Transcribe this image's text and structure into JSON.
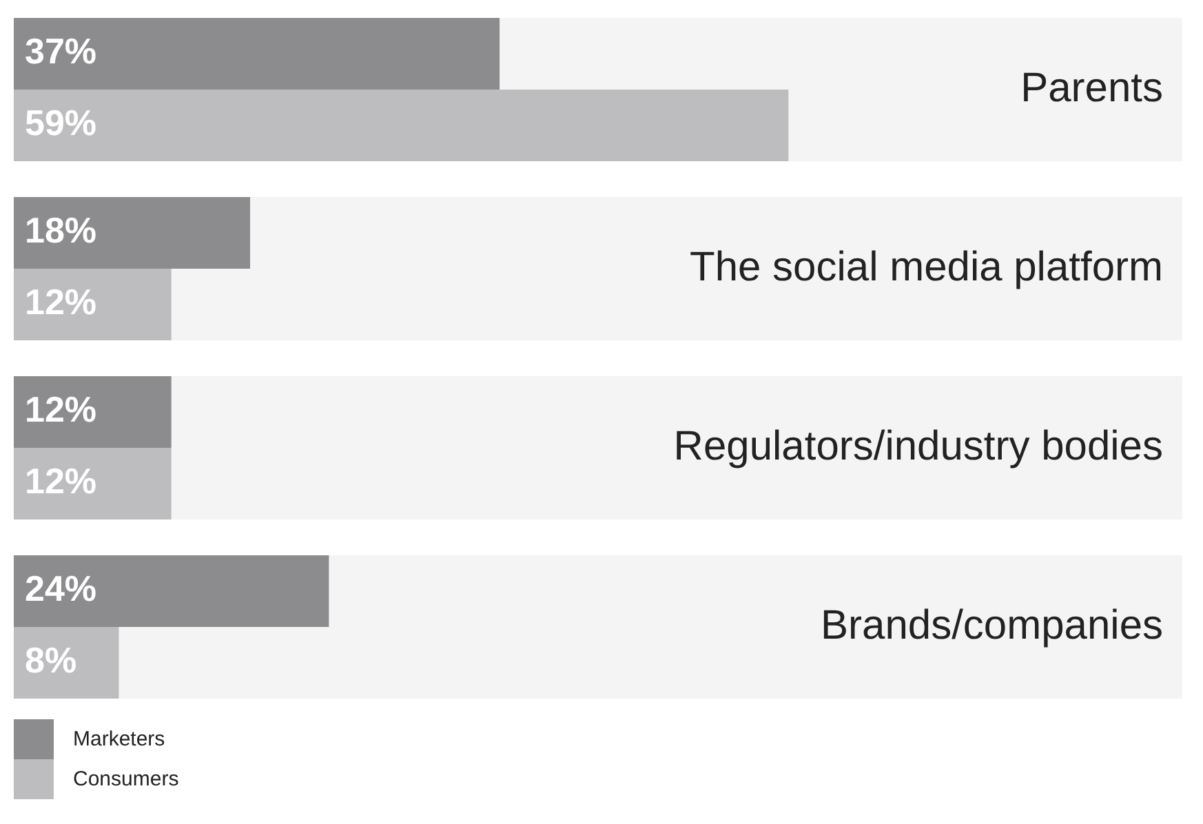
{
  "chart_data": {
    "type": "bar",
    "orientation": "horizontal",
    "categories": [
      "Parents",
      "The social media platform",
      "Regulators/industry bodies",
      "Brands/companies"
    ],
    "series": [
      {
        "name": "Marketers",
        "color": "#8c8c8e",
        "values": [
          37,
          18,
          12,
          24
        ],
        "value_labels": [
          "37%",
          "18%",
          "12%",
          "24%"
        ]
      },
      {
        "name": "Consumers",
        "color": "#bdbdbf",
        "values": [
          59,
          12,
          12,
          8
        ],
        "value_labels": [
          "59%",
          "12%",
          "12%",
          "8%"
        ]
      }
    ],
    "xlim": [
      0,
      89
    ],
    "legend": "bottom left"
  }
}
